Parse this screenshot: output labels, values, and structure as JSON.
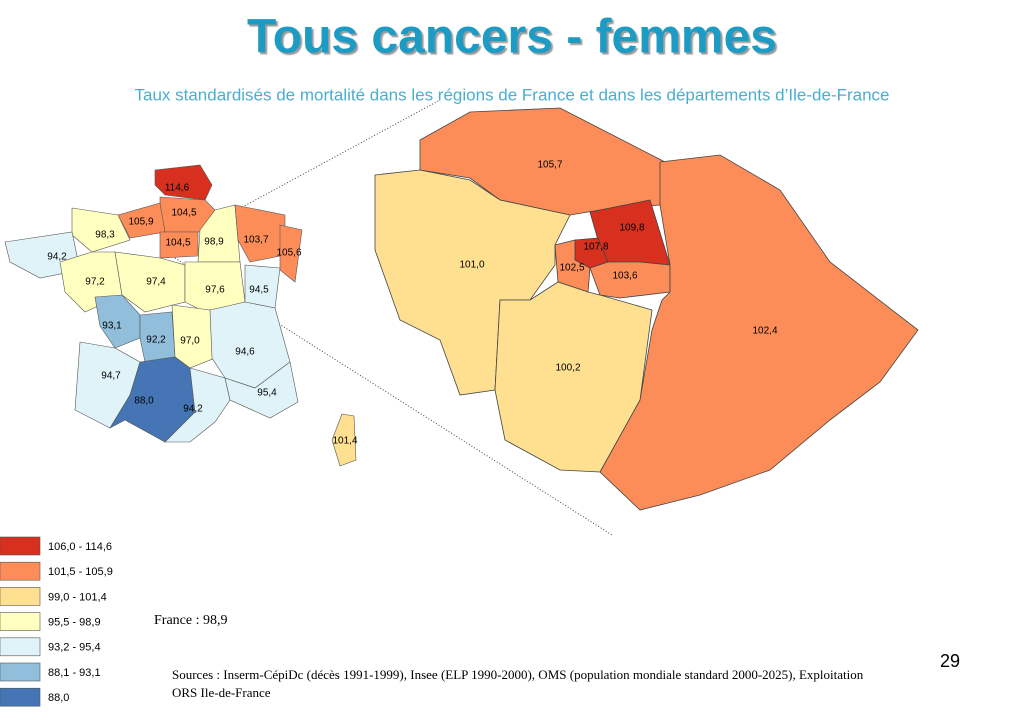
{
  "header": {
    "title": "Tous cancers - femmes",
    "subtitle": "Taux standardisés de mortalité dans les régions de France et dans les départements d’Ile-de-France"
  },
  "france_map": {
    "regions": [
      {
        "label": "114,6",
        "color": "#d7301f"
      },
      {
        "label": "104,5",
        "color": "#fc8d59"
      },
      {
        "label": "105,9",
        "color": "#fc8d59"
      },
      {
        "label": "98,3",
        "color": "#ffffbf"
      },
      {
        "label": "94,2",
        "color": "#e0f3f8"
      },
      {
        "label": "104,5",
        "color": "#fc8d59"
      },
      {
        "label": "98,9",
        "color": "#ffffbf"
      },
      {
        "label": "103,7",
        "color": "#fc8d59"
      },
      {
        "label": "105,6",
        "color": "#fc8d59"
      },
      {
        "label": "97,2",
        "color": "#ffffbf"
      },
      {
        "label": "97,4",
        "color": "#ffffbf"
      },
      {
        "label": "97,6",
        "color": "#ffffbf"
      },
      {
        "label": "94,5",
        "color": "#e0f3f8"
      },
      {
        "label": "93,1",
        "color": "#91bfdb"
      },
      {
        "label": "92,2",
        "color": "#91bfdb"
      },
      {
        "label": "97,0",
        "color": "#ffffbf"
      },
      {
        "label": "94,6",
        "color": "#e0f3f8"
      },
      {
        "label": "94,7",
        "color": "#e0f3f8"
      },
      {
        "label": "88,0",
        "color": "#4575b4"
      },
      {
        "label": "94,2",
        "color": "#e0f3f8"
      },
      {
        "label": "95,4",
        "color": "#e0f3f8"
      },
      {
        "label": "101,4",
        "color": "#fee090"
      }
    ]
  },
  "idf_map": {
    "departments": [
      {
        "label": "105,7",
        "color": "#fc8d59"
      },
      {
        "label": "101,0",
        "color": "#fee090"
      },
      {
        "label": "109,8",
        "color": "#d7301f"
      },
      {
        "label": "107,8",
        "color": "#d7301f"
      },
      {
        "label": "102,5",
        "color": "#fc8d59"
      },
      {
        "label": "103,6",
        "color": "#fc8d59"
      },
      {
        "label": "102,4",
        "color": "#fc8d59"
      },
      {
        "label": "100,2",
        "color": "#fee090"
      }
    ]
  },
  "legend": {
    "items": [
      {
        "label": "106,0 - 114,6",
        "color": "#d7301f"
      },
      {
        "label": "101,5 - 105,9",
        "color": "#fc8d59"
      },
      {
        "label": "99,0 - 101,4",
        "color": "#fee090"
      },
      {
        "label": "95,5 - 98,9",
        "color": "#ffffbf"
      },
      {
        "label": "93,2 - 95,4",
        "color": "#e0f3f8"
      },
      {
        "label": "88,1 - 93,1",
        "color": "#91bfdb"
      },
      {
        "label": "88,0",
        "color": "#4575b4"
      }
    ]
  },
  "national_note": "France : 98,9",
  "sources": [
    "Sources : Inserm-CépiDc (décès 1991-1999), Insee (ELP 1990-2000), OMS (population mondiale standard 2000-2025), Exploitation",
    "ORS Ile-de-France"
  ],
  "page_number": "29"
}
